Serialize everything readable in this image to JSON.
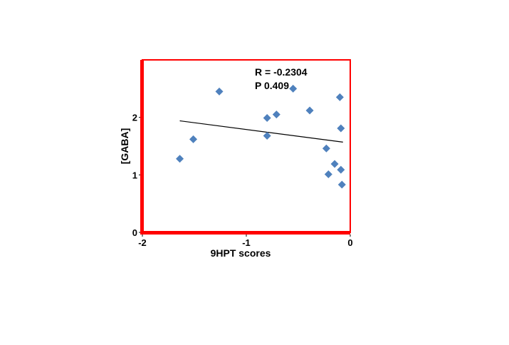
{
  "chart_data": {
    "type": "scatter",
    "title": "",
    "xlabel": "9HPT scores",
    "ylabel": "[GABA]",
    "xlim": [
      -2,
      0
    ],
    "ylim": [
      0,
      3
    ],
    "x_ticks": [
      -2,
      -1,
      0
    ],
    "x_tick_labels": [
      "-2",
      "-1",
      "0"
    ],
    "y_ticks": [
      0,
      1,
      2
    ],
    "y_tick_labels": [
      "0",
      "1",
      "2"
    ],
    "grid": false,
    "legend": "none",
    "annotations": {
      "r_text": "R = -0.2304",
      "p_text": "P 0.409"
    },
    "series": [
      {
        "marker": "diamond",
        "color": "#4F81BD",
        "points": [
          {
            "x": -1.64,
            "y": 1.28
          },
          {
            "x": -1.51,
            "y": 1.62
          },
          {
            "x": -1.26,
            "y": 2.45
          },
          {
            "x": -0.8,
            "y": 1.99
          },
          {
            "x": -0.8,
            "y": 1.68
          },
          {
            "x": -0.71,
            "y": 2.05
          },
          {
            "x": -0.55,
            "y": 2.5
          },
          {
            "x": -0.39,
            "y": 2.12
          },
          {
            "x": -0.23,
            "y": 1.46
          },
          {
            "x": -0.21,
            "y": 1.01
          },
          {
            "x": -0.15,
            "y": 1.19
          },
          {
            "x": -0.1,
            "y": 2.35
          },
          {
            "x": -0.09,
            "y": 1.81
          },
          {
            "x": -0.09,
            "y": 1.09
          },
          {
            "x": -0.08,
            "y": 0.83
          }
        ]
      }
    ],
    "trendline": {
      "color": "#000000",
      "x": [
        -1.64,
        -0.07
      ],
      "y": [
        1.94,
        1.57
      ]
    },
    "colors": {
      "plot_border": "#FF0000",
      "axis_highlight": "#FF0000",
      "marker": "#4F81BD"
    }
  }
}
